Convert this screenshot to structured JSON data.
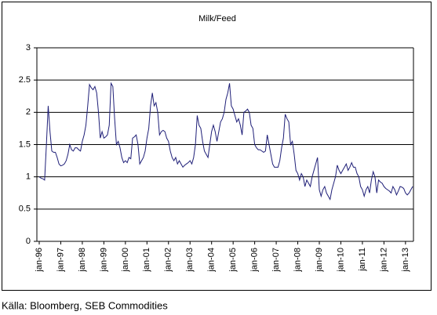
{
  "chart_data": {
    "type": "line",
    "title": "Milk/Feed",
    "source": "Källa: Bloomberg, SEB Commodities",
    "categories": [
      "jan-96",
      null,
      null,
      null,
      null,
      null,
      null,
      null,
      null,
      null,
      null,
      null,
      "jan-97",
      null,
      null,
      null,
      null,
      null,
      null,
      null,
      null,
      null,
      null,
      null,
      "jan-98",
      null,
      null,
      null,
      null,
      null,
      null,
      null,
      null,
      null,
      null,
      null,
      "jan-99",
      null,
      null,
      null,
      null,
      null,
      null,
      null,
      null,
      null,
      null,
      null,
      "jan-00",
      null,
      null,
      null,
      null,
      null,
      null,
      null,
      null,
      null,
      null,
      null,
      "jan-01",
      null,
      null,
      null,
      null,
      null,
      null,
      null,
      null,
      null,
      null,
      null,
      "jan-02",
      null,
      null,
      null,
      null,
      null,
      null,
      null,
      null,
      null,
      null,
      null,
      "jan-03",
      null,
      null,
      null,
      null,
      null,
      null,
      null,
      null,
      null,
      null,
      null,
      "jan-04",
      null,
      null,
      null,
      null,
      null,
      null,
      null,
      null,
      null,
      null,
      null,
      "jan-05",
      null,
      null,
      null,
      null,
      null,
      null,
      null,
      null,
      null,
      null,
      null,
      "jan-06",
      null,
      null,
      null,
      null,
      null,
      null,
      null,
      null,
      null,
      null,
      null,
      "jan-07",
      null,
      null,
      null,
      null,
      null,
      null,
      null,
      null,
      null,
      null,
      null,
      "jan-08",
      null,
      null,
      null,
      null,
      null,
      null,
      null,
      null,
      null,
      null,
      null,
      "jan-09",
      null,
      null,
      null,
      null,
      null,
      null,
      null,
      null,
      null,
      null,
      null,
      "jan-10",
      null,
      null,
      null,
      null,
      null,
      null,
      null,
      null,
      null,
      null,
      null,
      "jan-11",
      null,
      null,
      null,
      null,
      null,
      null,
      null,
      null,
      null,
      null,
      null,
      "jan-12",
      null,
      null,
      null,
      null,
      null,
      null,
      null,
      null,
      null,
      null,
      null,
      "jan-13",
      null,
      null,
      null,
      null
    ],
    "series": [
      {
        "name": "Milk/Feed",
        "color": "#1f1f78",
        "values": [
          1.0,
          0.98,
          0.97,
          0.95,
          1.5,
          2.1,
          1.7,
          1.4,
          1.38,
          1.38,
          1.3,
          1.2,
          1.17,
          1.18,
          1.2,
          1.25,
          1.35,
          1.5,
          1.42,
          1.4,
          1.45,
          1.45,
          1.42,
          1.4,
          1.55,
          1.65,
          1.8,
          2.1,
          2.43,
          2.38,
          2.35,
          2.4,
          2.3,
          2.0,
          1.6,
          1.7,
          1.6,
          1.62,
          1.65,
          1.8,
          2.45,
          2.4,
          1.9,
          1.5,
          1.55,
          1.45,
          1.3,
          1.22,
          1.25,
          1.22,
          1.3,
          1.28,
          1.6,
          1.62,
          1.65,
          1.5,
          1.2,
          1.25,
          1.3,
          1.4,
          1.6,
          1.75,
          2.1,
          2.3,
          2.1,
          2.15,
          2.0,
          1.65,
          1.7,
          1.72,
          1.7,
          1.6,
          1.55,
          1.4,
          1.3,
          1.25,
          1.3,
          1.2,
          1.25,
          1.2,
          1.15,
          1.18,
          1.2,
          1.22,
          1.25,
          1.2,
          1.3,
          1.5,
          1.95,
          1.8,
          1.75,
          1.55,
          1.4,
          1.35,
          1.3,
          1.5,
          1.7,
          1.8,
          1.7,
          1.55,
          1.7,
          1.85,
          1.9,
          2.0,
          2.2,
          2.3,
          2.45,
          2.1,
          2.05,
          1.95,
          1.85,
          1.9,
          1.8,
          1.65,
          2.0,
          2.02,
          2.05,
          2.0,
          1.8,
          1.75,
          1.5,
          1.45,
          1.42,
          1.42,
          1.4,
          1.38,
          1.4,
          1.65,
          1.5,
          1.35,
          1.2,
          1.15,
          1.15,
          1.15,
          1.25,
          1.45,
          1.6,
          1.97,
          1.9,
          1.85,
          1.5,
          1.55,
          1.35,
          1.1,
          1.05,
          0.95,
          1.05,
          1.0,
          0.85,
          0.95,
          0.9,
          0.85,
          1.0,
          1.1,
          1.2,
          1.3,
          0.8,
          0.7,
          0.8,
          0.85,
          0.75,
          0.7,
          0.65,
          0.8,
          0.9,
          1.0,
          1.18,
          1.1,
          1.05,
          1.1,
          1.15,
          1.2,
          1.1,
          1.15,
          1.22,
          1.15,
          1.15,
          1.05,
          1.0,
          0.85,
          0.8,
          0.7,
          0.8,
          0.85,
          0.75,
          0.95,
          1.08,
          1.0,
          0.75,
          0.95,
          0.92,
          0.9,
          0.85,
          0.82,
          0.8,
          0.78,
          0.75,
          0.85,
          0.8,
          0.72,
          0.78,
          0.85,
          0.84,
          0.82,
          0.75,
          0.72,
          0.75,
          0.8,
          0.85
        ]
      }
    ],
    "ylim": [
      0,
      3
    ],
    "yticks": [
      0,
      0.5,
      1,
      1.5,
      2,
      2.5,
      3
    ],
    "grid": true
  }
}
